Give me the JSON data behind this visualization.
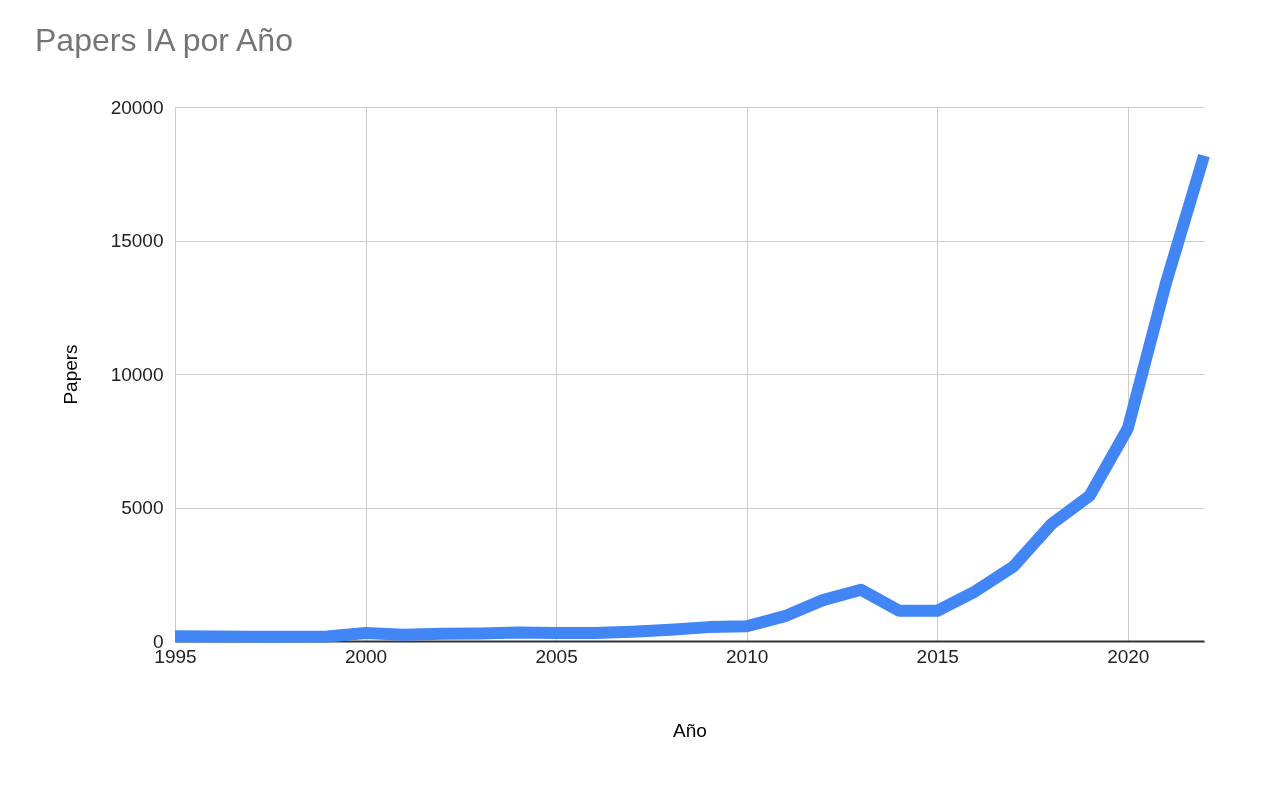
{
  "chart_data": {
    "type": "line",
    "title": "Papers IA por Año",
    "xlabel": "Año",
    "ylabel": "Papers",
    "x": [
      1995,
      1996,
      1997,
      1998,
      1999,
      2000,
      2001,
      2002,
      2003,
      2004,
      2005,
      2006,
      2007,
      2008,
      2009,
      2010,
      2011,
      2012,
      2013,
      2014,
      2015,
      2016,
      2017,
      2018,
      2019,
      2020,
      2021,
      2022
    ],
    "series": [
      {
        "color": "#4285f4",
        "values": [
          180,
          170,
          160,
          160,
          170,
          300,
          230,
          270,
          280,
          320,
          300,
          300,
          350,
          420,
          520,
          550,
          930,
          1530,
          1920,
          1130,
          1130,
          1860,
          2790,
          4380,
          5440,
          7960,
          13400,
          18180
        ]
      }
    ],
    "xlim": [
      1995,
      2022
    ],
    "xticks": [
      1995,
      2000,
      2005,
      2010,
      2015,
      2020
    ],
    "ylim": [
      0,
      20000
    ],
    "yticks": [
      0,
      5000,
      10000,
      15000,
      20000
    ],
    "grid": true,
    "legend": false,
    "line_style": "solid"
  }
}
